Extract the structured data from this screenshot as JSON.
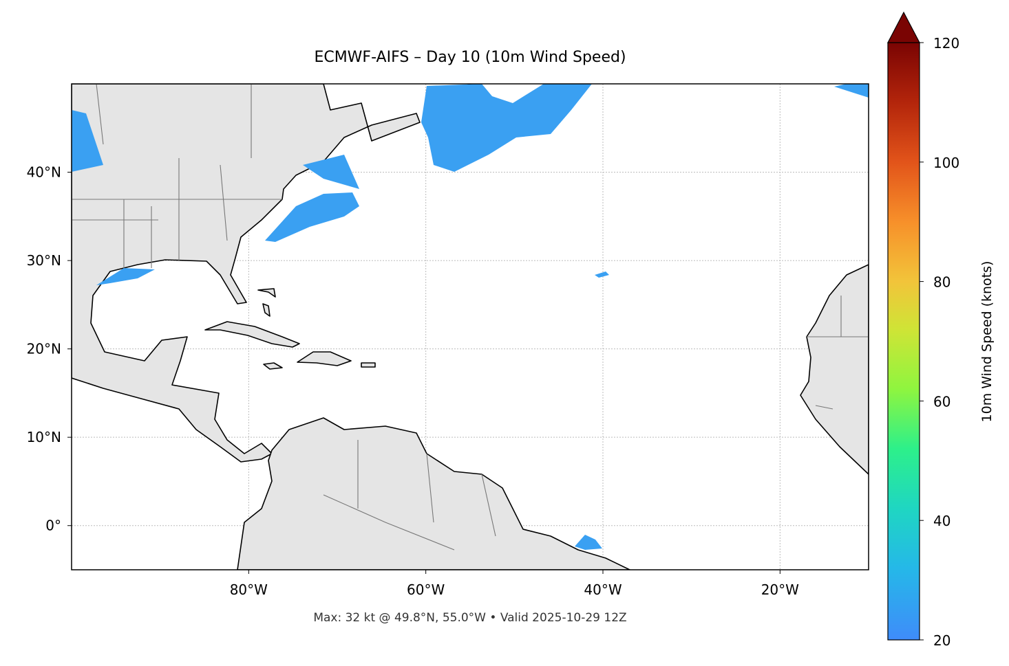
{
  "title": "ECMWF-AIFS – Day 10 (10m Wind Speed)",
  "map": {
    "xlim": [
      -100,
      -10
    ],
    "ylim": [
      -5,
      50
    ],
    "xticks": [
      {
        "value": -80,
        "label": "80°W"
      },
      {
        "value": -60,
        "label": "60°W"
      },
      {
        "value": -40,
        "label": "40°W"
      },
      {
        "value": -20,
        "label": "20°W"
      }
    ],
    "yticks": [
      {
        "value": 0,
        "label": "0°"
      },
      {
        "value": 10,
        "label": "10°N"
      },
      {
        "value": 20,
        "label": "20°N"
      },
      {
        "value": 30,
        "label": "30°N"
      },
      {
        "value": 40,
        "label": "40°N"
      }
    ],
    "grid": true
  },
  "colorbar": {
    "label": "10m Wind Speed (knots)",
    "lim": [
      20,
      120
    ],
    "ticks": [
      20,
      40,
      60,
      80,
      100,
      120
    ],
    "extend": "max"
  },
  "footer": "Max: 32 kt @ 49.8°N, 55.0°W • Valid 2025-10-29 12Z"
}
